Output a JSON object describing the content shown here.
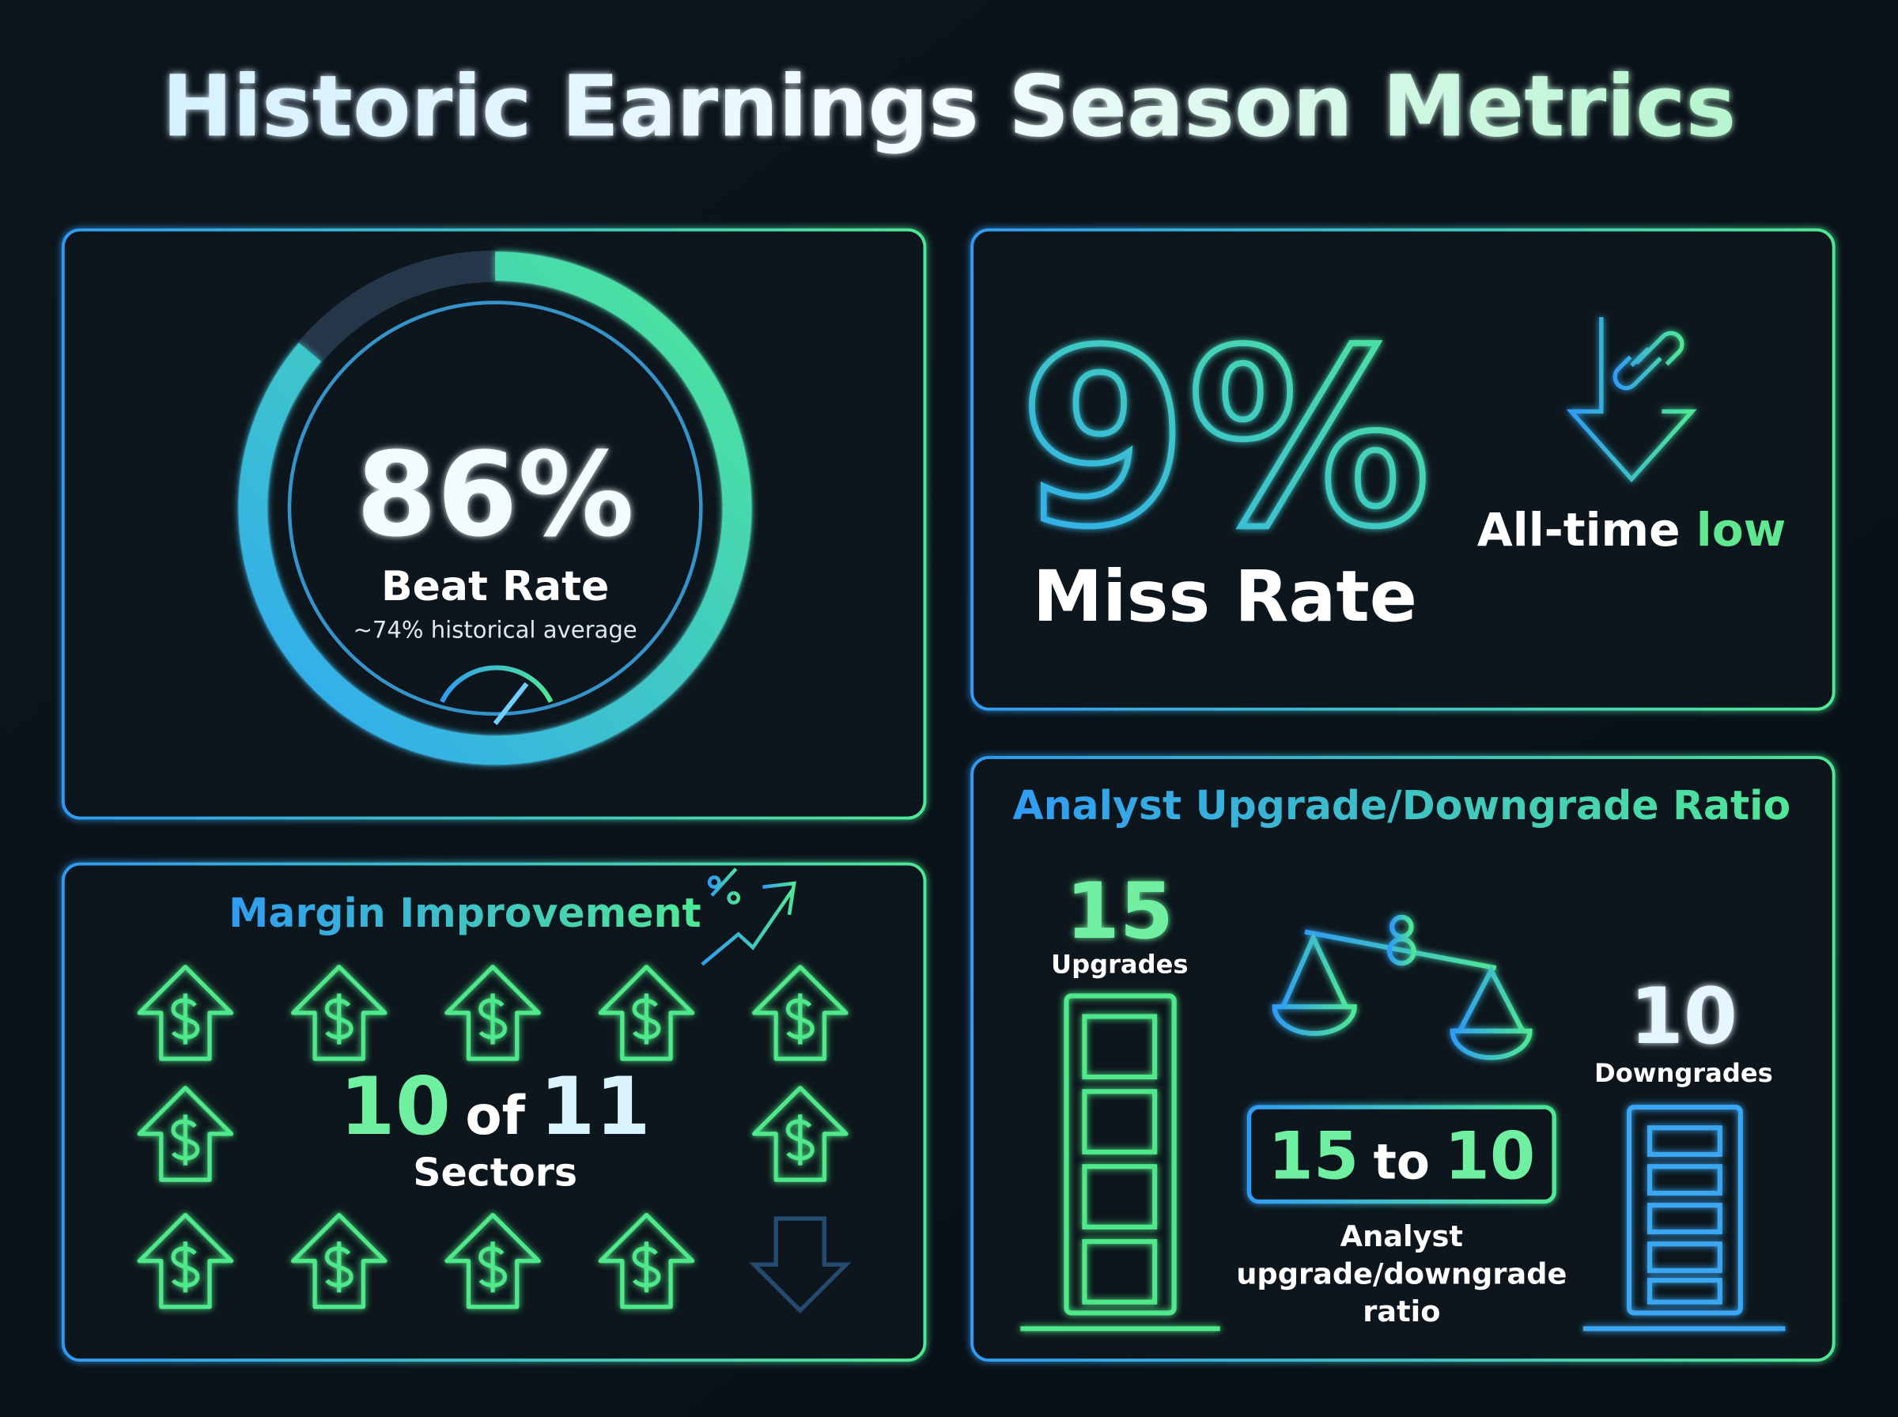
{
  "header": {
    "title": "Historic Earnings Season Metrics"
  },
  "beat_rate": {
    "value": "86%",
    "label": "Beat Rate",
    "note": "~74% historical average"
  },
  "miss_rate": {
    "value": "9%",
    "label": "Miss Rate",
    "badge": [
      "All-time",
      "low"
    ]
  },
  "margin": {
    "title": "Margin Improvement",
    "count": "10",
    "joiner": "of",
    "total": "11",
    "label": "Sectors"
  },
  "analyst": {
    "title": "Analyst Upgrade/Downgrade Ratio",
    "upgrades": "15",
    "upgrades_label": "Upgrades",
    "downgrades": "10",
    "downgrades_label": "Downgrades",
    "ratio": [
      "15",
      "to",
      "10"
    ],
    "caption": [
      "Analyst",
      "upgrade/downgrade",
      "ratio"
    ]
  }
}
